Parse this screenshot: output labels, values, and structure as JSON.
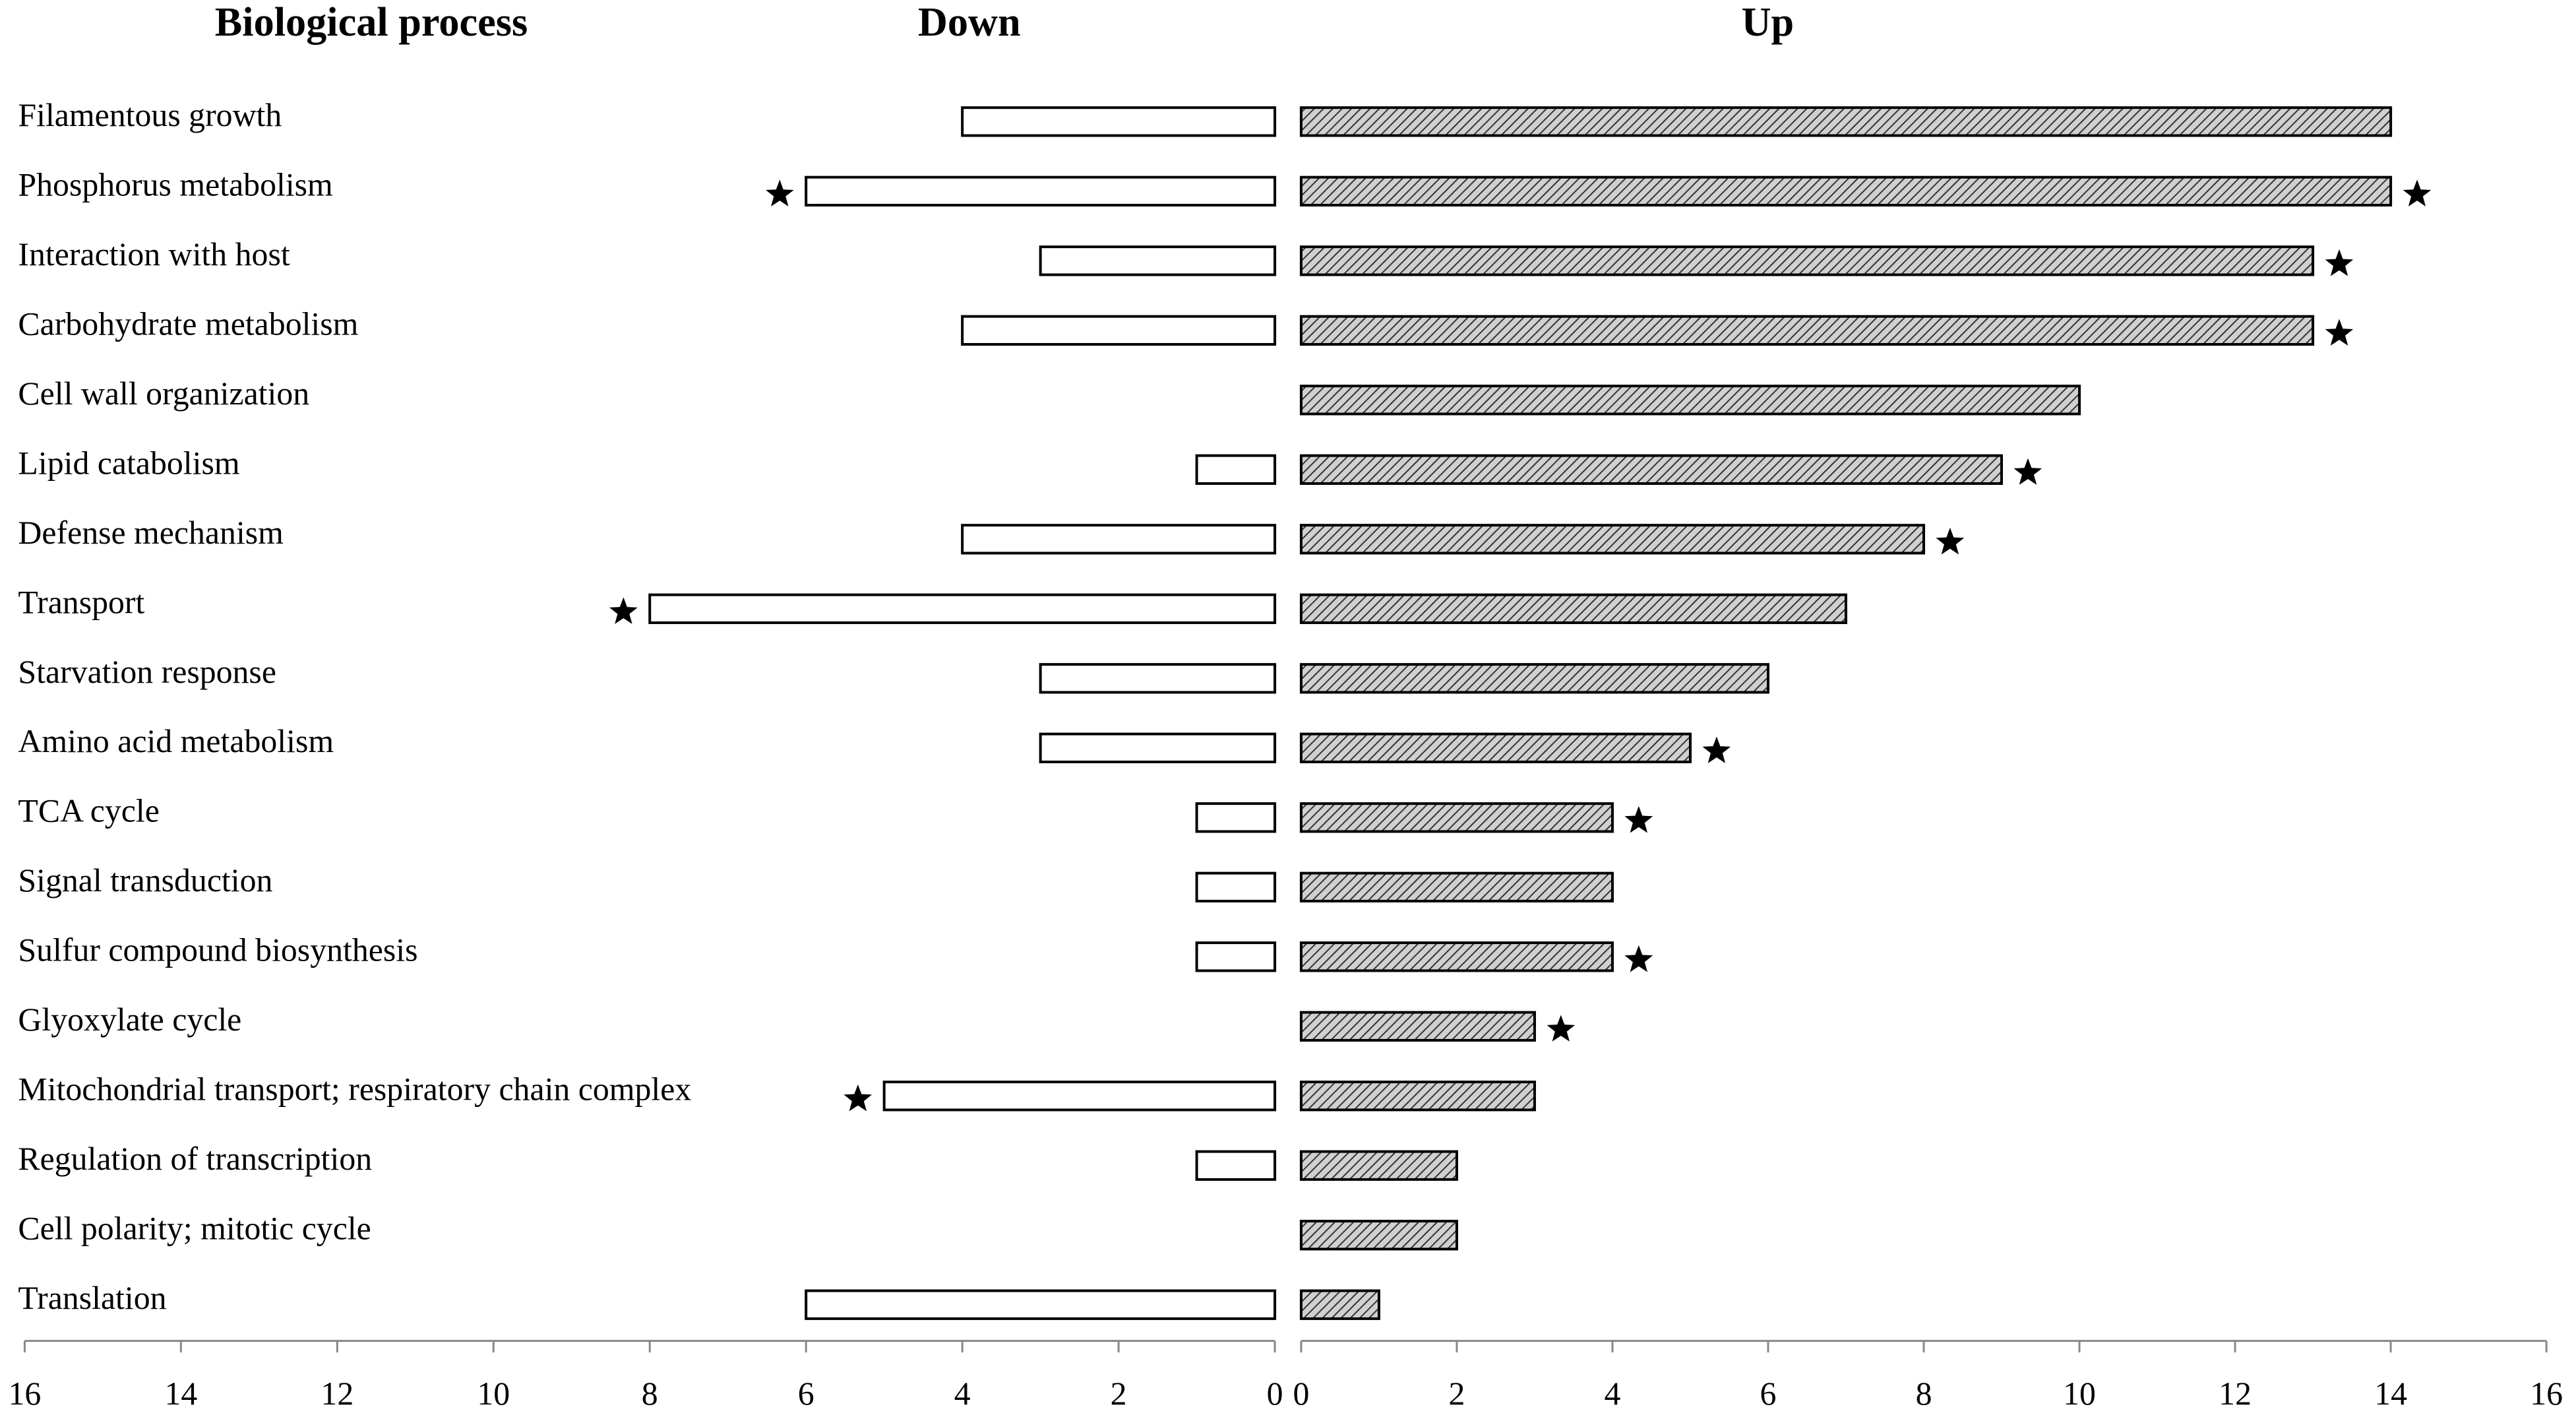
{
  "chart_data": {
    "type": "butterfly",
    "category_header": "Biological process",
    "categories": [
      "Filamentous growth",
      "Phosphorus metabolism",
      "Interaction with host",
      "Carbohydrate metabolism",
      "Cell wall organization",
      "Lipid catabolism",
      "Defense mechanism",
      "Transport",
      "Starvation response",
      "Amino acid metabolism",
      "TCA cycle",
      "Signal transduction",
      "Sulfur compound biosynthesis",
      "Glyoxylate cycle",
      "Mitochondrial transport; respiratory chain complex",
      "Regulation of transcription",
      "Cell polarity; mitotic cycle",
      "Translation"
    ],
    "series": [
      {
        "name": "Down",
        "color": "#ffffff",
        "hatch": false,
        "values": [
          4,
          6,
          3,
          4,
          null,
          1,
          4,
          8,
          3,
          3,
          1,
          1,
          1,
          null,
          5,
          1,
          null,
          6
        ],
        "starred": [
          1,
          7,
          14
        ]
      },
      {
        "name": "Up",
        "color": "#d0d0d0",
        "hatch": true,
        "values": [
          14,
          14,
          13,
          13,
          10,
          9,
          8,
          7,
          6,
          5,
          4,
          4,
          4,
          3,
          3,
          2,
          2,
          1
        ],
        "starred": [
          1,
          2,
          3,
          5,
          6,
          9,
          10,
          12,
          13
        ]
      }
    ],
    "xlim": [
      0,
      16
    ],
    "xticks": [
      0,
      2,
      4,
      6,
      8,
      10,
      12,
      14,
      16
    ]
  }
}
